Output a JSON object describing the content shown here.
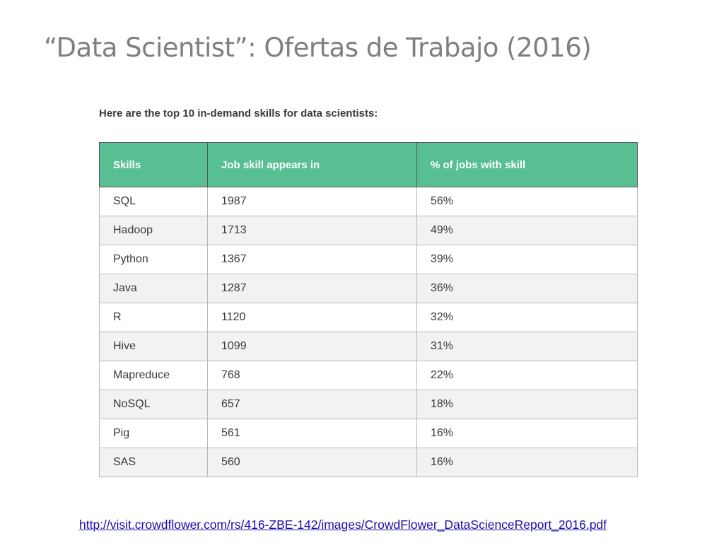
{
  "slide": {
    "title": "“Data Scientist”: Ofertas de Trabajo (2016)"
  },
  "table": {
    "caption": "Here are the top 10 in-demand skills for data scientists:",
    "headers": [
      "Skills",
      "Job skill appears in",
      "% of jobs with skill"
    ],
    "rows": [
      [
        "SQL",
        "1987",
        "56%"
      ],
      [
        "Hadoop",
        "1713",
        "49%"
      ],
      [
        "Python",
        "1367",
        "39%"
      ],
      [
        "Java",
        "1287",
        "36%"
      ],
      [
        "R",
        "1120",
        "32%"
      ],
      [
        "Hive",
        "1099",
        "31%"
      ],
      [
        "Mapreduce",
        "768",
        "22%"
      ],
      [
        "NoSQL",
        "657",
        "18%"
      ],
      [
        "Pig",
        "561",
        "16%"
      ],
      [
        "SAS",
        "560",
        "16%"
      ]
    ],
    "header_color": "#58bf93"
  },
  "source": {
    "link_text": "http://visit.crowdflower.com/rs/416-ZBE-142/images/CrowdFlower_DataScienceReport_2016.pdf",
    "link_color": "#1a0dab"
  }
}
